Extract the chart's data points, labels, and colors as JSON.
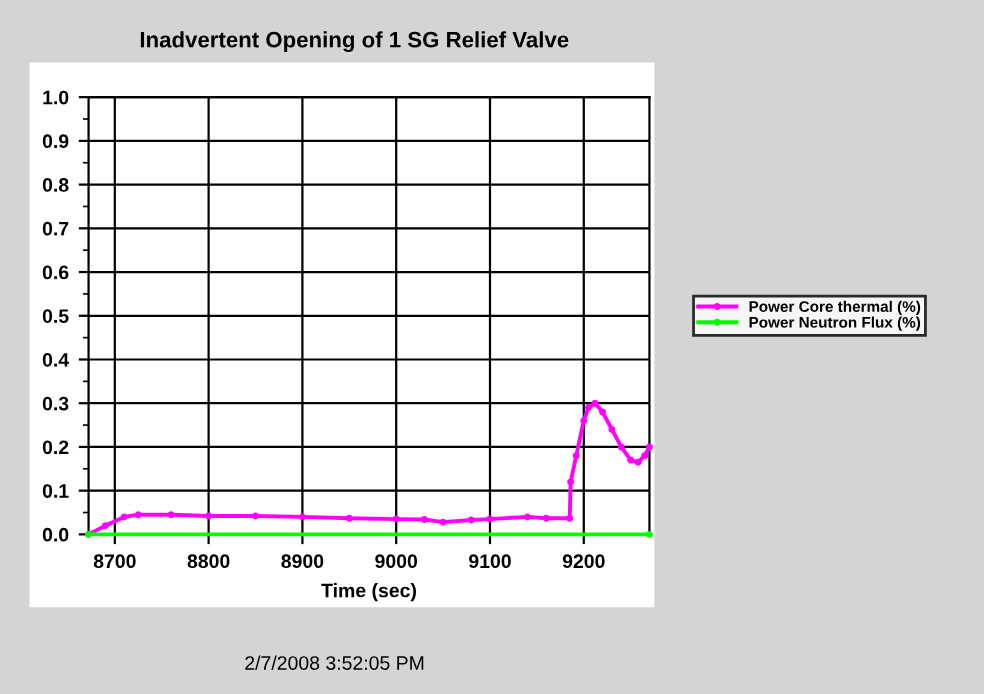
{
  "chart_data": {
    "type": "line",
    "title": "Inadvertent Opening of 1 SG Relief Valve",
    "xlabel": "Time (sec)",
    "xlim": [
      8672,
      9270
    ],
    "xticks": [
      8700,
      8800,
      8900,
      9000,
      9100,
      9200
    ],
    "ylim": [
      0,
      1.0
    ],
    "yticks": [
      {
        "value": 0,
        "label": "0.0"
      },
      0.1,
      0.2,
      0.3,
      0.4,
      0.5,
      0.6,
      0.7,
      0.8,
      0.9,
      {
        "value": 1.0,
        "label": "1.0"
      }
    ],
    "grid": true,
    "legend": "right",
    "marker": "circle",
    "annotations": [
      "2/7/2008 3:52:05 PM"
    ],
    "series": [
      {
        "name": "Power Core thermal (%)",
        "color": "#ff00ff",
        "x": [
          8672,
          8690,
          8710,
          8725,
          8760,
          8800,
          8850,
          8900,
          8950,
          9000,
          9030,
          9050,
          9080,
          9100,
          9140,
          9160,
          9185,
          9186,
          9192,
          9200,
          9205,
          9212,
          9220,
          9230,
          9240,
          9250,
          9258,
          9265,
          9270
        ],
        "values": [
          0,
          0.02,
          0.04,
          0.045,
          0.045,
          0.042,
          0.042,
          0.04,
          0.037,
          0.035,
          0.034,
          0.028,
          0.033,
          0.035,
          0.04,
          0.037,
          0.037,
          0.12,
          0.18,
          0.26,
          0.29,
          0.3,
          0.28,
          0.24,
          0.2,
          0.17,
          0.165,
          0.18,
          0.2
        ]
      },
      {
        "name": "Power Neutron Flux (%)",
        "color": "#00ff00",
        "x": [
          8672,
          9270
        ],
        "values": [
          0,
          0
        ]
      }
    ]
  }
}
